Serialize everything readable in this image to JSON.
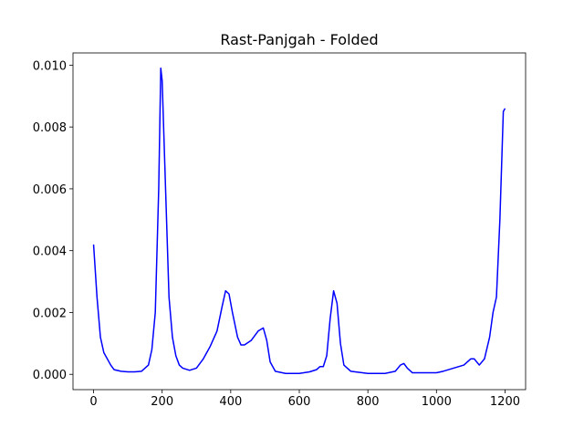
{
  "chart_data": {
    "type": "line",
    "title": "Rast-Panjgah - Folded",
    "x": [
      0,
      10,
      20,
      30,
      40,
      50,
      60,
      80,
      100,
      120,
      140,
      160,
      170,
      180,
      190,
      196,
      200,
      210,
      220,
      230,
      240,
      250,
      260,
      280,
      300,
      320,
      340,
      360,
      375,
      385,
      395,
      405,
      420,
      430,
      440,
      460,
      480,
      495,
      505,
      515,
      530,
      560,
      600,
      630,
      650,
      660,
      670,
      680,
      690,
      700,
      710,
      720,
      730,
      750,
      800,
      850,
      880,
      895,
      905,
      915,
      930,
      1000,
      1020,
      1050,
      1080,
      1100,
      1110,
      1125,
      1140,
      1155,
      1165,
      1175,
      1185,
      1195,
      1200
    ],
    "series": [
      {
        "color": "#0000ff",
        "values": [
          0.0042,
          0.0025,
          0.0012,
          0.0007,
          0.0005,
          0.0003,
          0.00015,
          0.0001,
          8e-05,
          8e-05,
          0.0001,
          0.0003,
          0.0008,
          0.002,
          0.006,
          0.0099,
          0.0095,
          0.006,
          0.0025,
          0.0012,
          0.0006,
          0.0003,
          0.0002,
          0.00013,
          0.0002,
          0.0005,
          0.0009,
          0.0014,
          0.0022,
          0.0027,
          0.0026,
          0.002,
          0.0012,
          0.00095,
          0.00095,
          0.0011,
          0.0014,
          0.0015,
          0.0011,
          0.0004,
          0.0001,
          3e-05,
          3e-05,
          8e-05,
          0.00015,
          0.00025,
          0.00025,
          0.0006,
          0.0018,
          0.0027,
          0.0023,
          0.001,
          0.0003,
          0.0001,
          3e-05,
          3e-05,
          0.0001,
          0.0003,
          0.00035,
          0.0002,
          5e-05,
          5e-05,
          0.0001,
          0.0002,
          0.0003,
          0.0005,
          0.0005,
          0.0003,
          0.0005,
          0.0012,
          0.002,
          0.0025,
          0.005,
          0.0085,
          0.0086
        ]
      }
    ],
    "xlim": [
      -60,
      1260
    ],
    "xticks": [
      0,
      200,
      400,
      600,
      800,
      1000,
      1200
    ],
    "ylim": [
      -0.000495,
      0.010395
    ],
    "yticks": [
      {
        "value": 0,
        "label": "0.000"
      },
      {
        "value": 0.002,
        "label": "0.002"
      },
      {
        "value": 0.004,
        "label": "0.004"
      },
      {
        "value": 0.006,
        "label": "0.006"
      },
      {
        "value": 0.008,
        "label": "0.008"
      },
      {
        "value": 0.01,
        "label": "0.010"
      }
    ]
  }
}
